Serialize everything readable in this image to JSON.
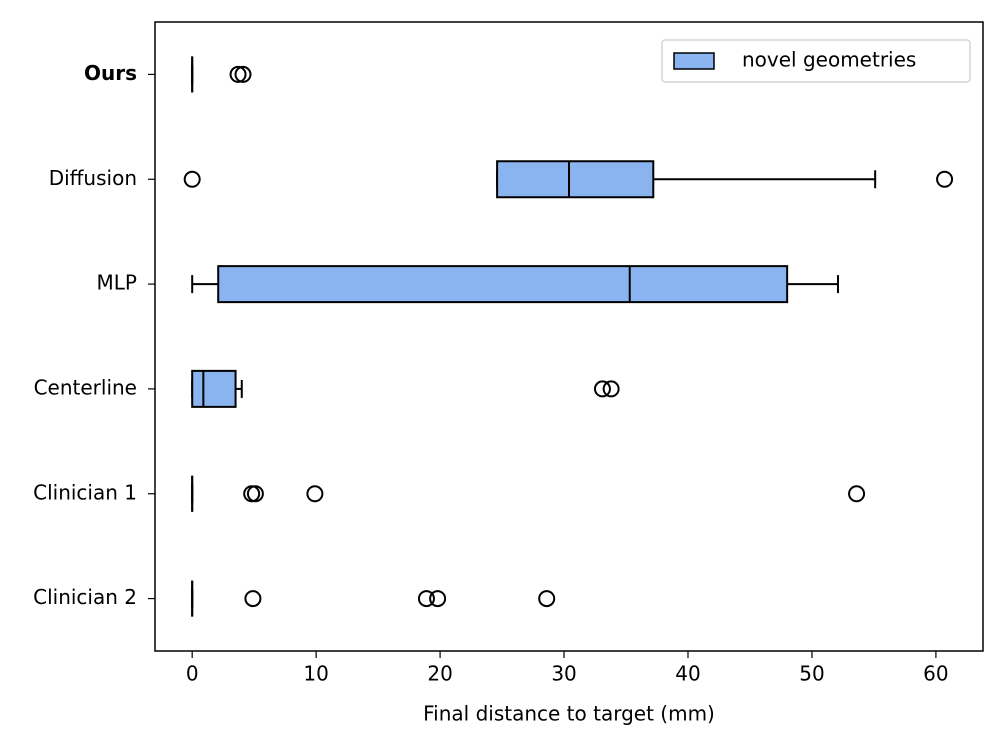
{
  "chart_data": {
    "type": "boxplot",
    "orientation": "horizontal",
    "xlabel": "Final distance to target (mm)",
    "categories": [
      "Ours",
      "Diffusion",
      "MLP",
      "Centerline",
      "Clinician 1",
      "Clinician 2"
    ],
    "series": [
      {
        "name": "novel geometries",
        "color": "#8ab4f0",
        "boxes": [
          {
            "min": 0,
            "q1": 0,
            "median": 0,
            "q3": 0,
            "max": 0,
            "outliers": [
              3.7,
              4.1
            ]
          },
          {
            "min": 24.6,
            "q1": 24.6,
            "median": 30.4,
            "q3": 37.2,
            "max": 55.1,
            "outliers": [
              0,
              60.7
            ]
          },
          {
            "min": 0,
            "q1": 2.1,
            "median": 35.3,
            "q3": 48.0,
            "max": 52.1,
            "outliers": []
          },
          {
            "min": 0,
            "q1": 0,
            "median": 0.9,
            "q3": 3.5,
            "max": 4.0,
            "outliers": [
              33.1,
              33.8
            ]
          },
          {
            "min": 0,
            "q1": 0,
            "median": 0,
            "q3": 0,
            "max": 0,
            "outliers": [
              4.8,
              5.1,
              9.9,
              53.6
            ]
          },
          {
            "min": 0,
            "q1": 0,
            "median": 0,
            "q3": 0,
            "max": 0,
            "outliers": [
              4.9,
              18.9,
              19.8,
              28.6
            ]
          }
        ]
      }
    ],
    "xlim": [
      -3,
      63.8
    ],
    "xticks": [
      0,
      10,
      20,
      30,
      40,
      50,
      60
    ],
    "legend": "upper right",
    "grid": false
  }
}
